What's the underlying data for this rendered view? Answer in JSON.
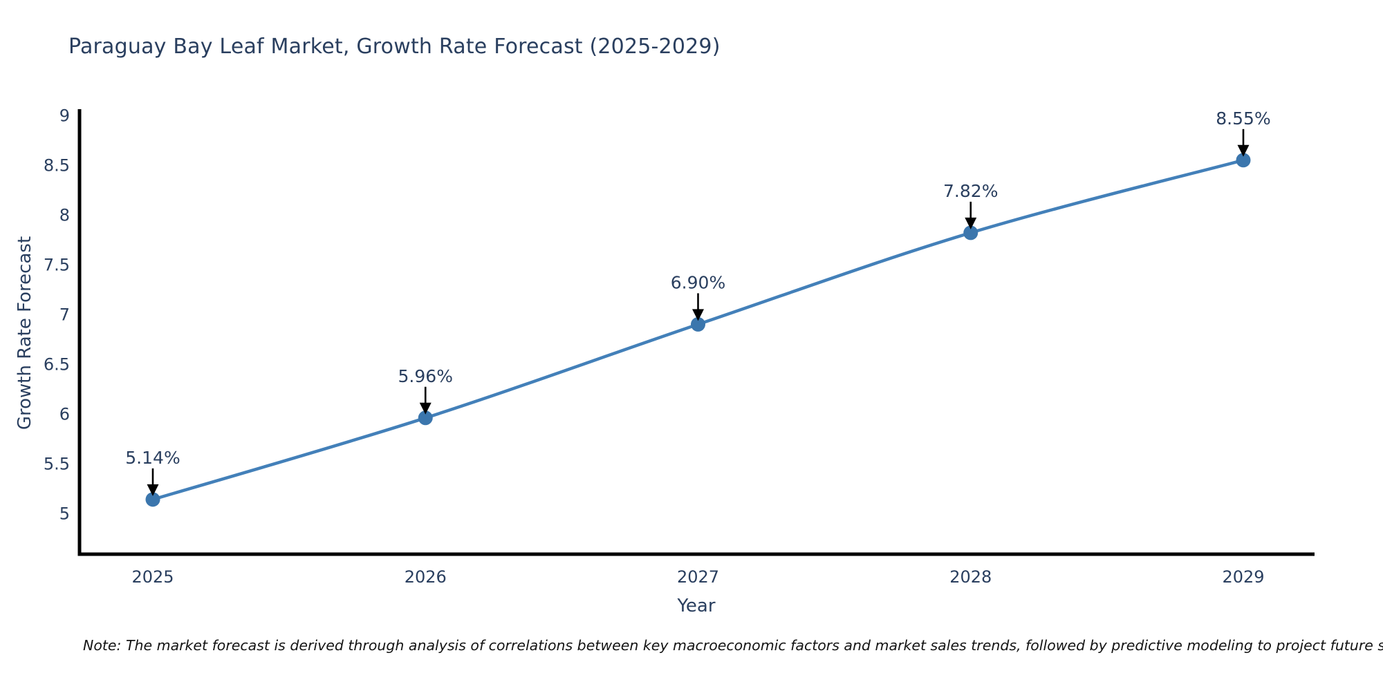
{
  "chart_data": {
    "type": "line",
    "title": "Paraguay Bay Leaf Market, Growth Rate Forecast (2025-2029)",
    "xlabel": "Year",
    "ylabel": "Growth Rate Forecast",
    "categories": [
      "2025",
      "2026",
      "2027",
      "2028",
      "2029"
    ],
    "series": [
      {
        "name": "Growth Rate Forecast",
        "values": [
          5.14,
          5.96,
          6.9,
          7.82,
          8.55
        ],
        "point_labels": [
          "5.14%",
          "5.96%",
          "6.90%",
          "7.82%",
          "8.55%"
        ]
      }
    ],
    "ylim": [
      4.5,
      9.1
    ],
    "ytick_labels": [
      "5",
      "5.5",
      "6",
      "6.5",
      "7",
      "7.5",
      "8",
      "8.5",
      "9"
    ],
    "grid": false,
    "legend_position": "none",
    "line_color": "#4380b9",
    "marker_color": "#3b76ad",
    "arrow_color": "#000000",
    "axis_color": "#000000",
    "text_color": "#2a3f5f"
  },
  "footnote": "Note: The market forecast is derived through analysis of correlations between key macroeconomic factors and market sales trends, followed by predictive modeling to project future sales"
}
